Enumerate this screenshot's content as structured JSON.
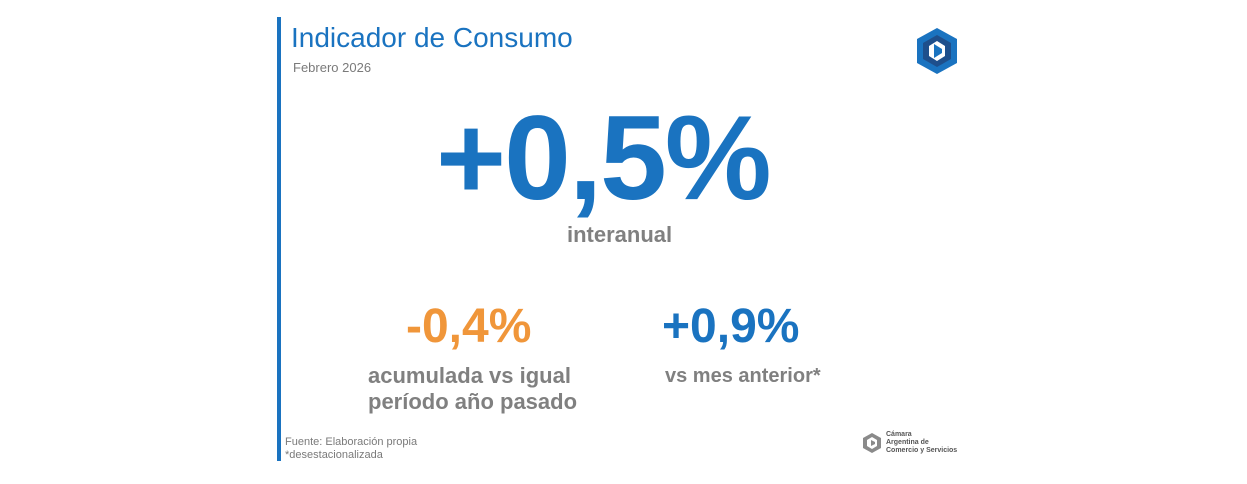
{
  "header": {
    "title": "Indicador de Consumo",
    "subtitle": "Febrero 2026"
  },
  "main": {
    "value": "+0,5%",
    "label": "interanual"
  },
  "cumulative": {
    "value": "-0,4%",
    "label_line1": "acumulada vs igual",
    "label_line2": "período año pasado"
  },
  "month_over_month": {
    "value": "+0,9%",
    "label": "vs mes anterior*"
  },
  "footer": {
    "source": "Fuente: Elaboración propia",
    "note": "*desestacionalizada",
    "org_line1": "Cámara",
    "org_line2": "Argentina de",
    "org_line3": "Comercio y Servicios"
  },
  "colors": {
    "blue": "#1a73c0",
    "dark_blue": "#1e4f8c",
    "orange": "#f0963a",
    "gray": "#808080"
  },
  "icons": {
    "logo": "cac-hexagon-logo-icon"
  }
}
